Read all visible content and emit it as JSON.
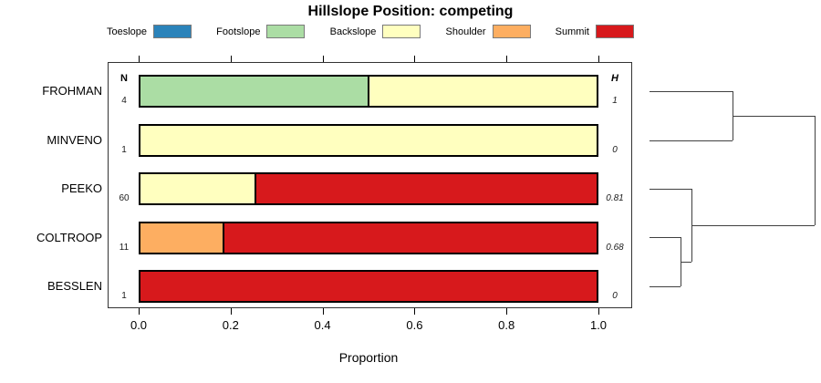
{
  "title": "Hillslope Position: competing",
  "legend": {
    "items": [
      {
        "label": "Toeslope",
        "color": "#2B83BA"
      },
      {
        "label": "Footslope",
        "color": "#ABDDA4"
      },
      {
        "label": "Backslope",
        "color": "#FFFFBF"
      },
      {
        "label": "Shoulder",
        "color": "#FDAE61"
      },
      {
        "label": "Summit",
        "color": "#D7191C"
      }
    ]
  },
  "columns": {
    "n_header": "N",
    "h_header": "H"
  },
  "chart_data": {
    "type": "bar",
    "orientation": "horizontal",
    "stacked": true,
    "title": "Hillslope Position: competing",
    "xlabel": "Proportion",
    "xlim": [
      0,
      1
    ],
    "x_ticks": [
      0.0,
      0.2,
      0.4,
      0.6,
      0.8,
      1.0
    ],
    "x_tick_labels": [
      "0.0",
      "0.2",
      "0.4",
      "0.6",
      "0.8",
      "1.0"
    ],
    "grid": false,
    "legend_position": "top",
    "categories": [
      "FROHMAN",
      "MINVENO",
      "PEEKO",
      "COLTROOP",
      "BESSLEN"
    ],
    "n_values": [
      "4",
      "1",
      "60",
      "11",
      "1"
    ],
    "h_values": [
      "1",
      "0",
      "0.81",
      "0.68",
      "0"
    ],
    "series": [
      {
        "name": "Toeslope",
        "values": [
          0,
          0,
          0,
          0,
          0
        ]
      },
      {
        "name": "Footslope",
        "values": [
          0.5,
          0,
          0,
          0,
          0
        ]
      },
      {
        "name": "Backslope",
        "values": [
          0.5,
          1,
          0.25,
          0,
          0
        ]
      },
      {
        "name": "Shoulder",
        "values": [
          0,
          0,
          0,
          0.18,
          0
        ]
      },
      {
        "name": "Summit",
        "values": [
          0,
          0,
          0.75,
          0.82,
          1
        ]
      }
    ],
    "dendrogram": {
      "description": "hierarchical clustering of rows, root at right",
      "merges": [
        {
          "cluster": [
            "FROHMAN",
            "MINVENO"
          ]
        },
        {
          "cluster": [
            "COLTROOP",
            "BESSLEN"
          ]
        },
        {
          "cluster": [
            "PEEKO",
            [
              "COLTROOP",
              "BESSLEN"
            ]
          ]
        },
        {
          "cluster": [
            [
              "FROHMAN",
              "MINVENO"
            ],
            [
              "PEEKO",
              [
                "COLTROOP",
                "BESSLEN"
              ]
            ]
          ]
        }
      ],
      "segments": [
        [
          19,
          32,
          110,
          32
        ],
        [
          19,
          86,
          110,
          86
        ],
        [
          110,
          32,
          110,
          86
        ],
        [
          110,
          59,
          200,
          59
        ],
        [
          19,
          139,
          65,
          139
        ],
        [
          19,
          192,
          53,
          192
        ],
        [
          19,
          246,
          53,
          246
        ],
        [
          53,
          192,
          53,
          246
        ],
        [
          53,
          219,
          65,
          219
        ],
        [
          65,
          139,
          65,
          219
        ],
        [
          65,
          179,
          200,
          179
        ],
        [
          200,
          59,
          200,
          179
        ]
      ]
    }
  }
}
